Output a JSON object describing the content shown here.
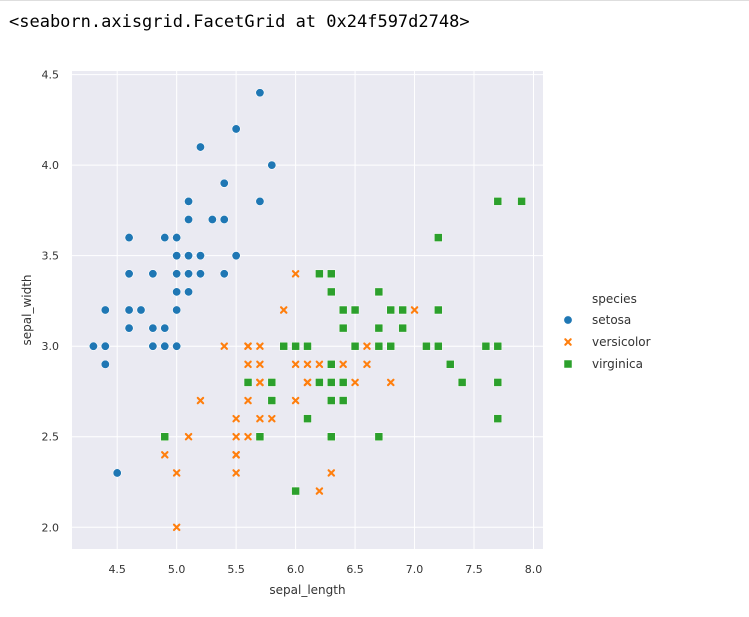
{
  "output": {
    "repr_text": "<seaborn.axisgrid.FacetGrid at 0x24f597d2748>"
  },
  "chart_data": {
    "type": "scatter",
    "xlabel": "sepal_length",
    "ylabel": "sepal_width",
    "xlim": [
      4.12,
      8.08
    ],
    "ylim": [
      1.88,
      4.52
    ],
    "xticks": [
      "4.5",
      "5.0",
      "5.5",
      "6.0",
      "6.5",
      "7.0",
      "7.5",
      "8.0"
    ],
    "yticks": [
      "2.0",
      "2.5",
      "3.0",
      "3.5",
      "4.0",
      "4.5"
    ],
    "grid": true,
    "background": "#eaeaf2",
    "legend": {
      "title": "species",
      "placement": "outside-right",
      "entries": [
        "setosa",
        "versicolor",
        "virginica"
      ]
    },
    "series": [
      {
        "name": "setosa",
        "marker": "circle",
        "color": "#1f77b4",
        "points": [
          [
            5.1,
            3.5
          ],
          [
            4.9,
            3.0
          ],
          [
            4.7,
            3.2
          ],
          [
            4.6,
            3.1
          ],
          [
            5.0,
            3.6
          ],
          [
            5.4,
            3.9
          ],
          [
            4.6,
            3.4
          ],
          [
            5.0,
            3.4
          ],
          [
            4.4,
            2.9
          ],
          [
            4.9,
            3.1
          ],
          [
            5.4,
            3.7
          ],
          [
            4.8,
            3.4
          ],
          [
            4.8,
            3.0
          ],
          [
            4.3,
            3.0
          ],
          [
            5.8,
            4.0
          ],
          [
            5.7,
            4.4
          ],
          [
            5.4,
            3.9
          ],
          [
            5.1,
            3.5
          ],
          [
            5.7,
            3.8
          ],
          [
            5.1,
            3.8
          ],
          [
            5.4,
            3.4
          ],
          [
            5.1,
            3.7
          ],
          [
            4.6,
            3.6
          ],
          [
            5.1,
            3.3
          ],
          [
            4.8,
            3.4
          ],
          [
            5.0,
            3.0
          ],
          [
            5.0,
            3.4
          ],
          [
            5.2,
            3.5
          ],
          [
            5.2,
            3.4
          ],
          [
            4.7,
            3.2
          ],
          [
            4.8,
            3.1
          ],
          [
            5.4,
            3.4
          ],
          [
            5.2,
            4.1
          ],
          [
            5.5,
            4.2
          ],
          [
            4.9,
            3.1
          ],
          [
            5.0,
            3.2
          ],
          [
            5.5,
            3.5
          ],
          [
            4.9,
            3.6
          ],
          [
            4.4,
            3.0
          ],
          [
            5.1,
            3.4
          ],
          [
            5.0,
            3.5
          ],
          [
            4.5,
            2.3
          ],
          [
            4.4,
            3.2
          ],
          [
            5.0,
            3.5
          ],
          [
            5.1,
            3.8
          ],
          [
            4.8,
            3.0
          ],
          [
            5.1,
            3.8
          ],
          [
            4.6,
            3.2
          ],
          [
            5.3,
            3.7
          ],
          [
            5.0,
            3.3
          ]
        ]
      },
      {
        "name": "versicolor",
        "marker": "x",
        "color": "#ff7f0e",
        "points": [
          [
            7.0,
            3.2
          ],
          [
            6.4,
            3.2
          ],
          [
            6.9,
            3.1
          ],
          [
            5.5,
            2.3
          ],
          [
            6.5,
            2.8
          ],
          [
            5.7,
            2.8
          ],
          [
            6.3,
            3.3
          ],
          [
            4.9,
            2.4
          ],
          [
            6.6,
            2.9
          ],
          [
            5.2,
            2.7
          ],
          [
            5.0,
            2.0
          ],
          [
            5.9,
            3.0
          ],
          [
            6.0,
            2.2
          ],
          [
            6.1,
            2.9
          ],
          [
            5.6,
            2.9
          ],
          [
            6.7,
            3.1
          ],
          [
            5.6,
            3.0
          ],
          [
            5.8,
            2.7
          ],
          [
            6.2,
            2.2
          ],
          [
            5.6,
            2.5
          ],
          [
            5.9,
            3.2
          ],
          [
            6.1,
            2.8
          ],
          [
            6.3,
            2.5
          ],
          [
            6.1,
            2.8
          ],
          [
            6.4,
            2.9
          ],
          [
            6.6,
            3.0
          ],
          [
            6.8,
            2.8
          ],
          [
            6.7,
            3.0
          ],
          [
            6.0,
            2.9
          ],
          [
            5.7,
            2.6
          ],
          [
            5.5,
            2.4
          ],
          [
            5.5,
            2.4
          ],
          [
            5.8,
            2.7
          ],
          [
            6.0,
            2.7
          ],
          [
            5.4,
            3.0
          ],
          [
            6.0,
            3.4
          ],
          [
            6.7,
            3.1
          ],
          [
            6.3,
            2.3
          ],
          [
            5.6,
            3.0
          ],
          [
            5.5,
            2.5
          ],
          [
            5.5,
            2.6
          ],
          [
            6.1,
            3.0
          ],
          [
            5.8,
            2.6
          ],
          [
            5.0,
            2.3
          ],
          [
            5.6,
            2.7
          ],
          [
            5.7,
            3.0
          ],
          [
            5.7,
            2.9
          ],
          [
            6.2,
            2.9
          ],
          [
            5.1,
            2.5
          ],
          [
            5.7,
            2.8
          ]
        ]
      },
      {
        "name": "virginica",
        "marker": "square",
        "color": "#2ca02c",
        "points": [
          [
            6.3,
            3.3
          ],
          [
            5.8,
            2.7
          ],
          [
            7.1,
            3.0
          ],
          [
            6.3,
            2.9
          ],
          [
            6.5,
            3.0
          ],
          [
            7.6,
            3.0
          ],
          [
            4.9,
            2.5
          ],
          [
            7.3,
            2.9
          ],
          [
            6.7,
            2.5
          ],
          [
            7.2,
            3.6
          ],
          [
            6.5,
            3.2
          ],
          [
            6.4,
            2.7
          ],
          [
            6.8,
            3.0
          ],
          [
            5.7,
            2.5
          ],
          [
            5.8,
            2.8
          ],
          [
            6.4,
            3.2
          ],
          [
            6.5,
            3.0
          ],
          [
            7.7,
            3.8
          ],
          [
            7.7,
            2.6
          ],
          [
            6.0,
            2.2
          ],
          [
            6.9,
            3.2
          ],
          [
            5.6,
            2.8
          ],
          [
            7.7,
            2.8
          ],
          [
            6.3,
            2.7
          ],
          [
            6.7,
            3.3
          ],
          [
            7.2,
            3.2
          ],
          [
            6.2,
            2.8
          ],
          [
            6.1,
            3.0
          ],
          [
            6.4,
            2.8
          ],
          [
            7.2,
            3.0
          ],
          [
            7.4,
            2.8
          ],
          [
            7.9,
            3.8
          ],
          [
            6.4,
            2.8
          ],
          [
            6.3,
            2.8
          ],
          [
            6.1,
            2.6
          ],
          [
            7.7,
            3.0
          ],
          [
            6.3,
            3.4
          ],
          [
            6.4,
            3.1
          ],
          [
            6.0,
            3.0
          ],
          [
            6.9,
            3.1
          ],
          [
            6.7,
            3.1
          ],
          [
            6.9,
            3.1
          ],
          [
            5.8,
            2.7
          ],
          [
            6.8,
            3.2
          ],
          [
            6.7,
            3.3
          ],
          [
            6.7,
            3.0
          ],
          [
            6.3,
            2.5
          ],
          [
            6.5,
            3.0
          ],
          [
            6.2,
            3.4
          ],
          [
            5.9,
            3.0
          ]
        ]
      }
    ]
  }
}
